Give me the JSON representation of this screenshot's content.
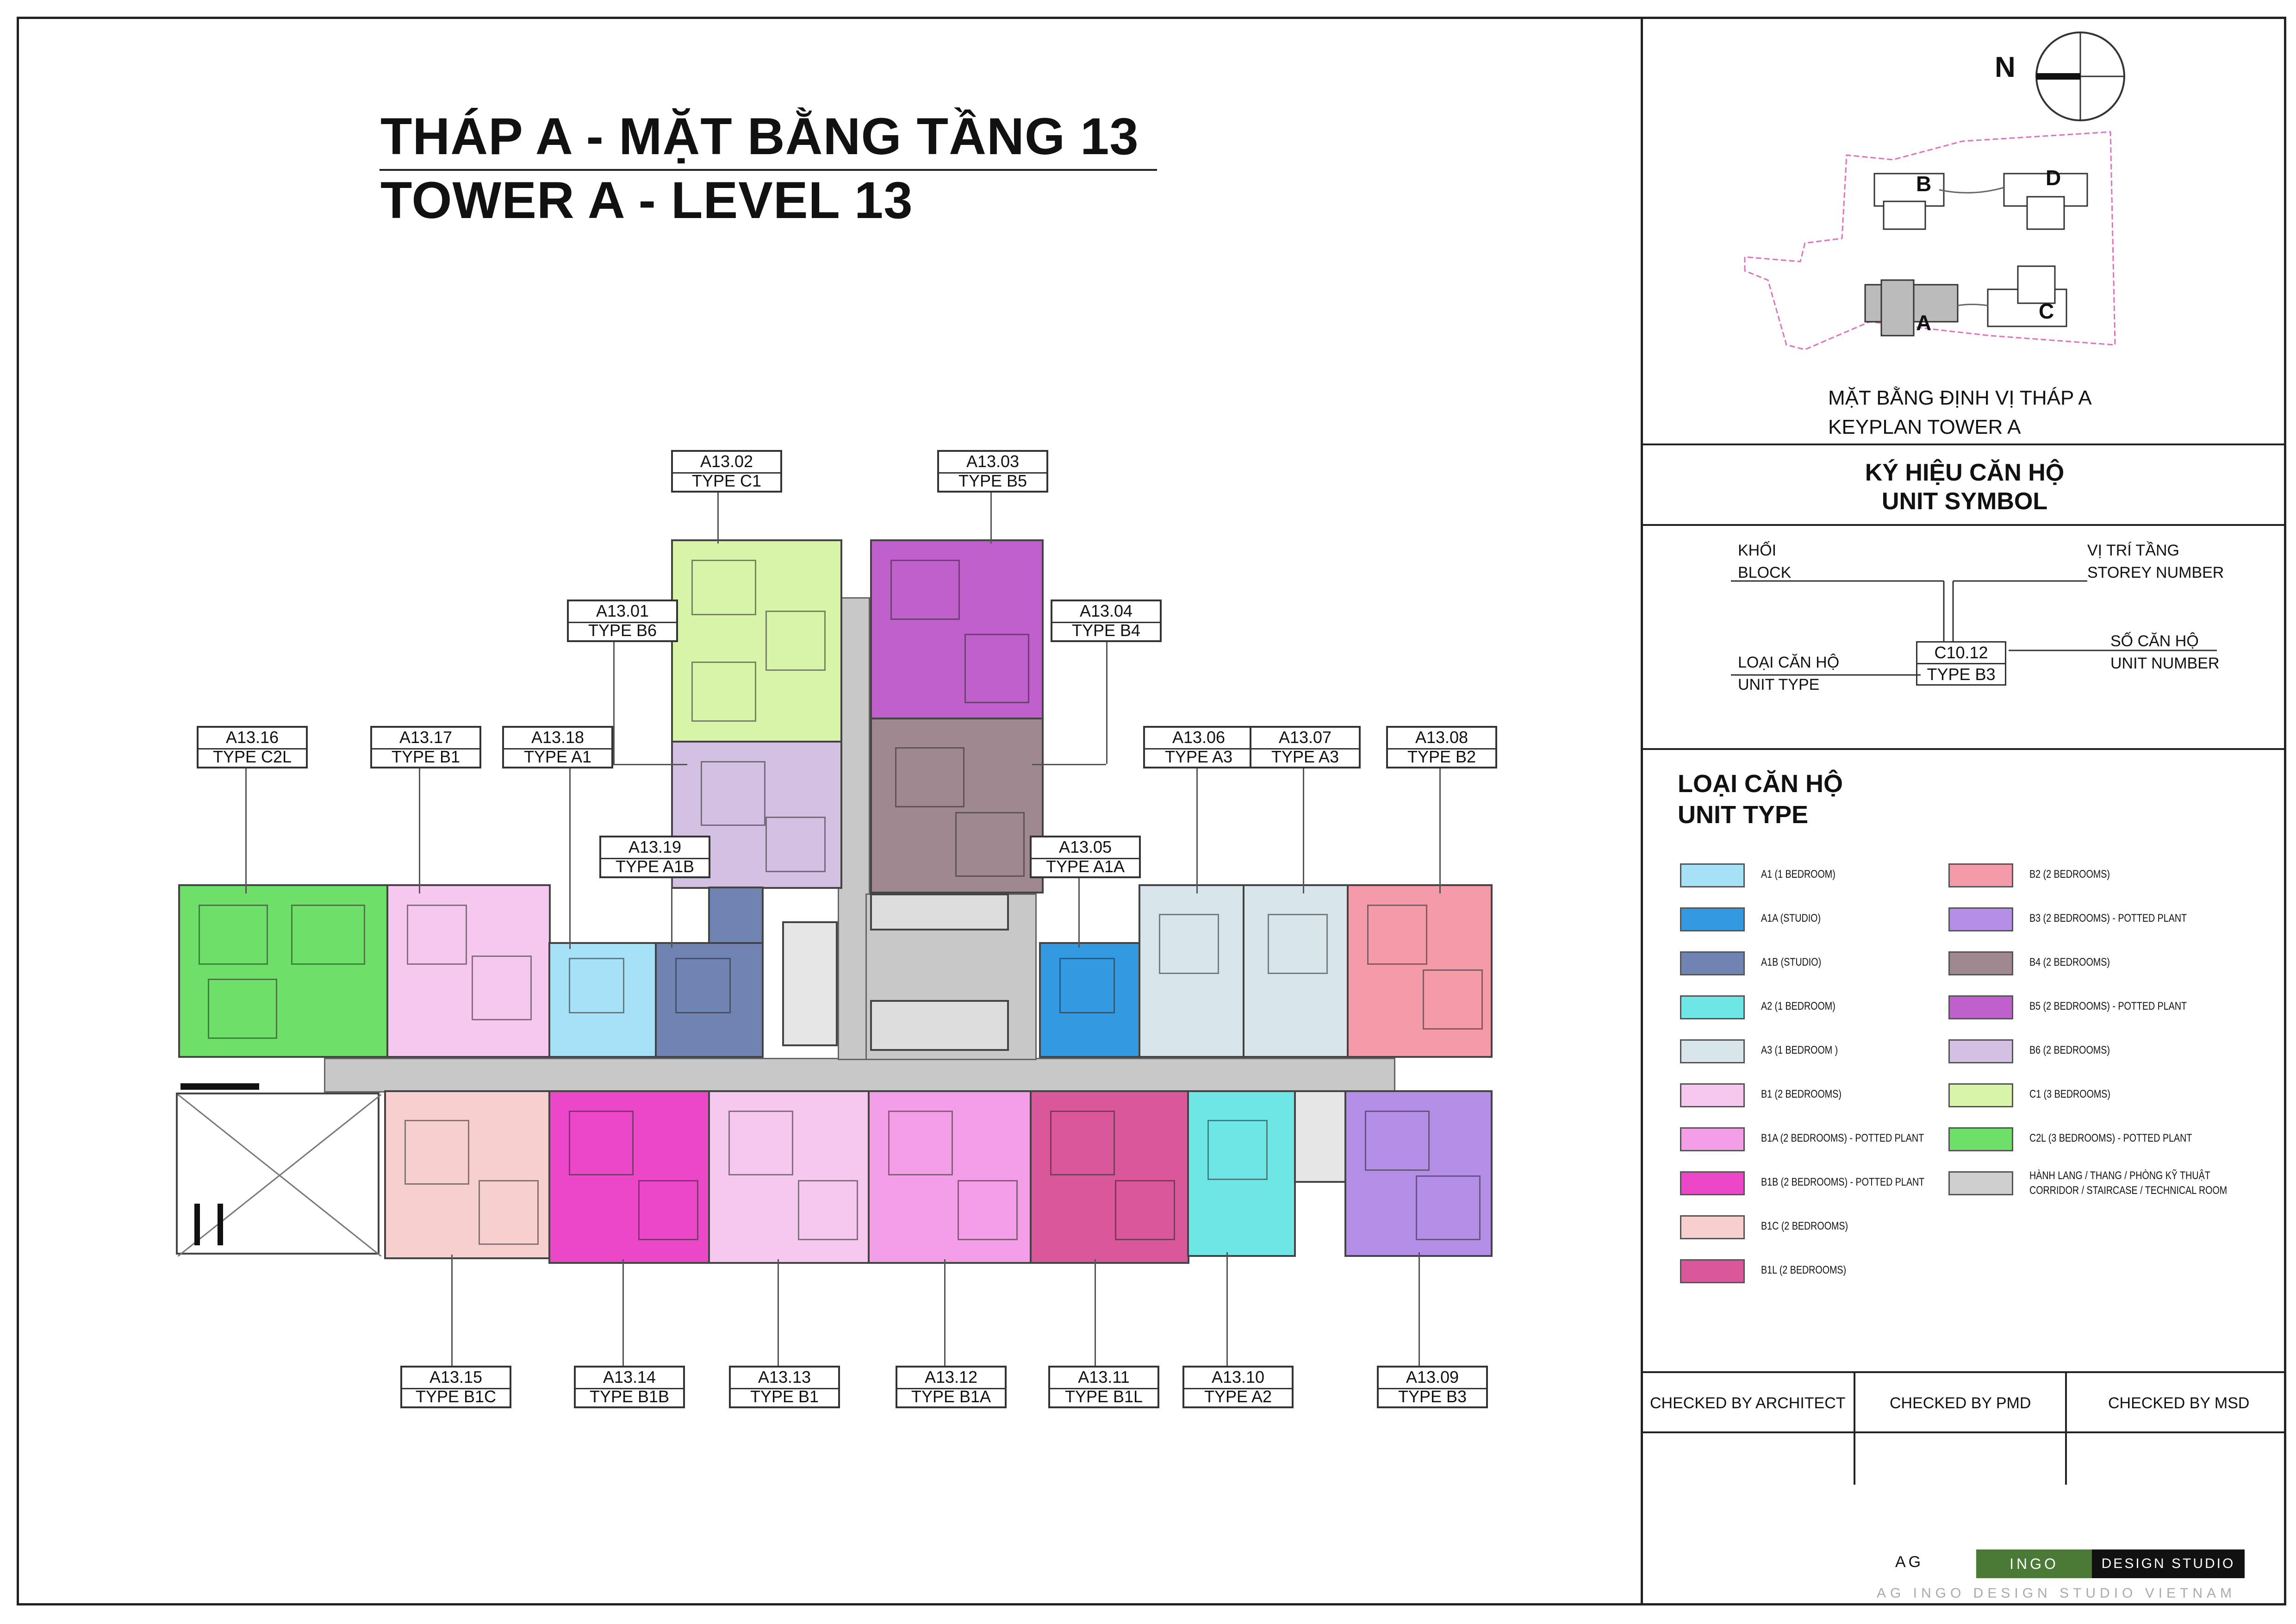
{
  "title": {
    "line1": "THÁP A - MẶT BẰNG TẦNG 13",
    "line2": "TOWER A - LEVEL 13"
  },
  "units": [
    {
      "code": "A13.01",
      "type": "TYPE B6"
    },
    {
      "code": "A13.02",
      "type": "TYPE C1"
    },
    {
      "code": "A13.03",
      "type": "TYPE B5"
    },
    {
      "code": "A13.04",
      "type": "TYPE B4"
    },
    {
      "code": "A13.05",
      "type": "TYPE A1A"
    },
    {
      "code": "A13.06",
      "type": "TYPE A3"
    },
    {
      "code": "A13.07",
      "type": "TYPE A3"
    },
    {
      "code": "A13.08",
      "type": "TYPE B2"
    },
    {
      "code": "A13.09",
      "type": "TYPE B3"
    },
    {
      "code": "A13.10",
      "type": "TYPE A2"
    },
    {
      "code": "A13.11",
      "type": "TYPE B1L"
    },
    {
      "code": "A13.12",
      "type": "TYPE B1A"
    },
    {
      "code": "A13.13",
      "type": "TYPE B1"
    },
    {
      "code": "A13.14",
      "type": "TYPE B1B"
    },
    {
      "code": "A13.15",
      "type": "TYPE B1C"
    },
    {
      "code": "A13.16",
      "type": "TYPE C2L"
    },
    {
      "code": "A13.17",
      "type": "TYPE B1"
    },
    {
      "code": "A13.18",
      "type": "TYPE A1"
    },
    {
      "code": "A13.19",
      "type": "TYPE A1B"
    }
  ],
  "keyplan": {
    "north_label": "N",
    "blocks": [
      "A",
      "B",
      "C",
      "D"
    ],
    "caption_vi": "MẶT BẰNG ĐỊNH VỊ THÁP A",
    "caption_en": "KEYPLAN TOWER A"
  },
  "unit_symbol": {
    "heading_vi": "KÝ HIỆU CĂN HỘ",
    "heading_en": "UNIT SYMBOL",
    "block_vi": "KHỐI",
    "block_en": "BLOCK",
    "storey_vi": "VỊ TRÍ TẦNG",
    "storey_en": "STOREY NUMBER",
    "unit_type_vi": "LOẠI CĂN HỘ",
    "unit_type_en": "UNIT TYPE",
    "unit_number_vi": "SỐ CĂN HỘ",
    "unit_number_en": "UNIT NUMBER",
    "sample_code": "C10.12",
    "sample_type": "TYPE B3"
  },
  "legend": {
    "heading_vi": "LOẠI CĂN HỘ",
    "heading_en": "UNIT TYPE",
    "items": [
      {
        "label": "A1 (1 BEDROOM)",
        "color": "#a6e2f7"
      },
      {
        "label": "A1A (STUDIO)",
        "color": "#3399e0"
      },
      {
        "label": "A1B (STUDIO)",
        "color": "#6f84b3"
      },
      {
        "label": "A2 (1 BEDROOM)",
        "color": "#6ee6e6"
      },
      {
        "label": "A3 (1 BEDROOM )",
        "color": "#d8e6ec"
      },
      {
        "label": "B1 (2 BEDROOMS)",
        "color": "#f6c8f0"
      },
      {
        "label": "B1A (2 BEDROOMS) - POTTED PLANT",
        "color": "#f59ee8"
      },
      {
        "label": "B1B (2 BEDROOMS) - POTTED PLANT",
        "color": "#ec47c9"
      },
      {
        "label": "B1C (2 BEDROOMS)",
        "color": "#f8cfcf"
      },
      {
        "label": "B1L (2 BEDROOMS)",
        "color": "#d9579a"
      },
      {
        "label": "B2 (2 BEDROOMS)",
        "color": "#f49aa8"
      },
      {
        "label": "B3 (2 BEDROOMS) - POTTED PLANT",
        "color": "#b58ee8"
      },
      {
        "label": "B4 (2 BEDROOMS)",
        "color": "#a08890"
      },
      {
        "label": "B5 (2 BEDROOMS) - POTTED PLANT",
        "color": "#c060cc"
      },
      {
        "label": "B6 (2 BEDROOMS)",
        "color": "#d4c0e2"
      },
      {
        "label": "C1 (3 BEDROOMS)",
        "color": "#d8f4a8"
      },
      {
        "label": "C2L (3 BEDROOMS) - POTTED PLANT",
        "color": "#6ee06a"
      },
      {
        "label": "HÀNH LANG / THANG / PHÒNG  KỸ THUẬT",
        "label2": "CORRIDOR / STAIRCASE / TECHNICAL ROOM",
        "color": "#cfcfcf"
      }
    ]
  },
  "checks": {
    "architect": "CHECKED BY ARCHITECT",
    "pmd": "CHECKED BY PMD",
    "msd": "CHECKED BY MSD"
  },
  "logo": {
    "ag": "AG",
    "ingo": "INGO",
    "design_studio": "DESIGN STUDIO",
    "footer": "AG INGO DESIGN STUDIO VIETNAM",
    "ingo_color": "#4a7a35"
  }
}
